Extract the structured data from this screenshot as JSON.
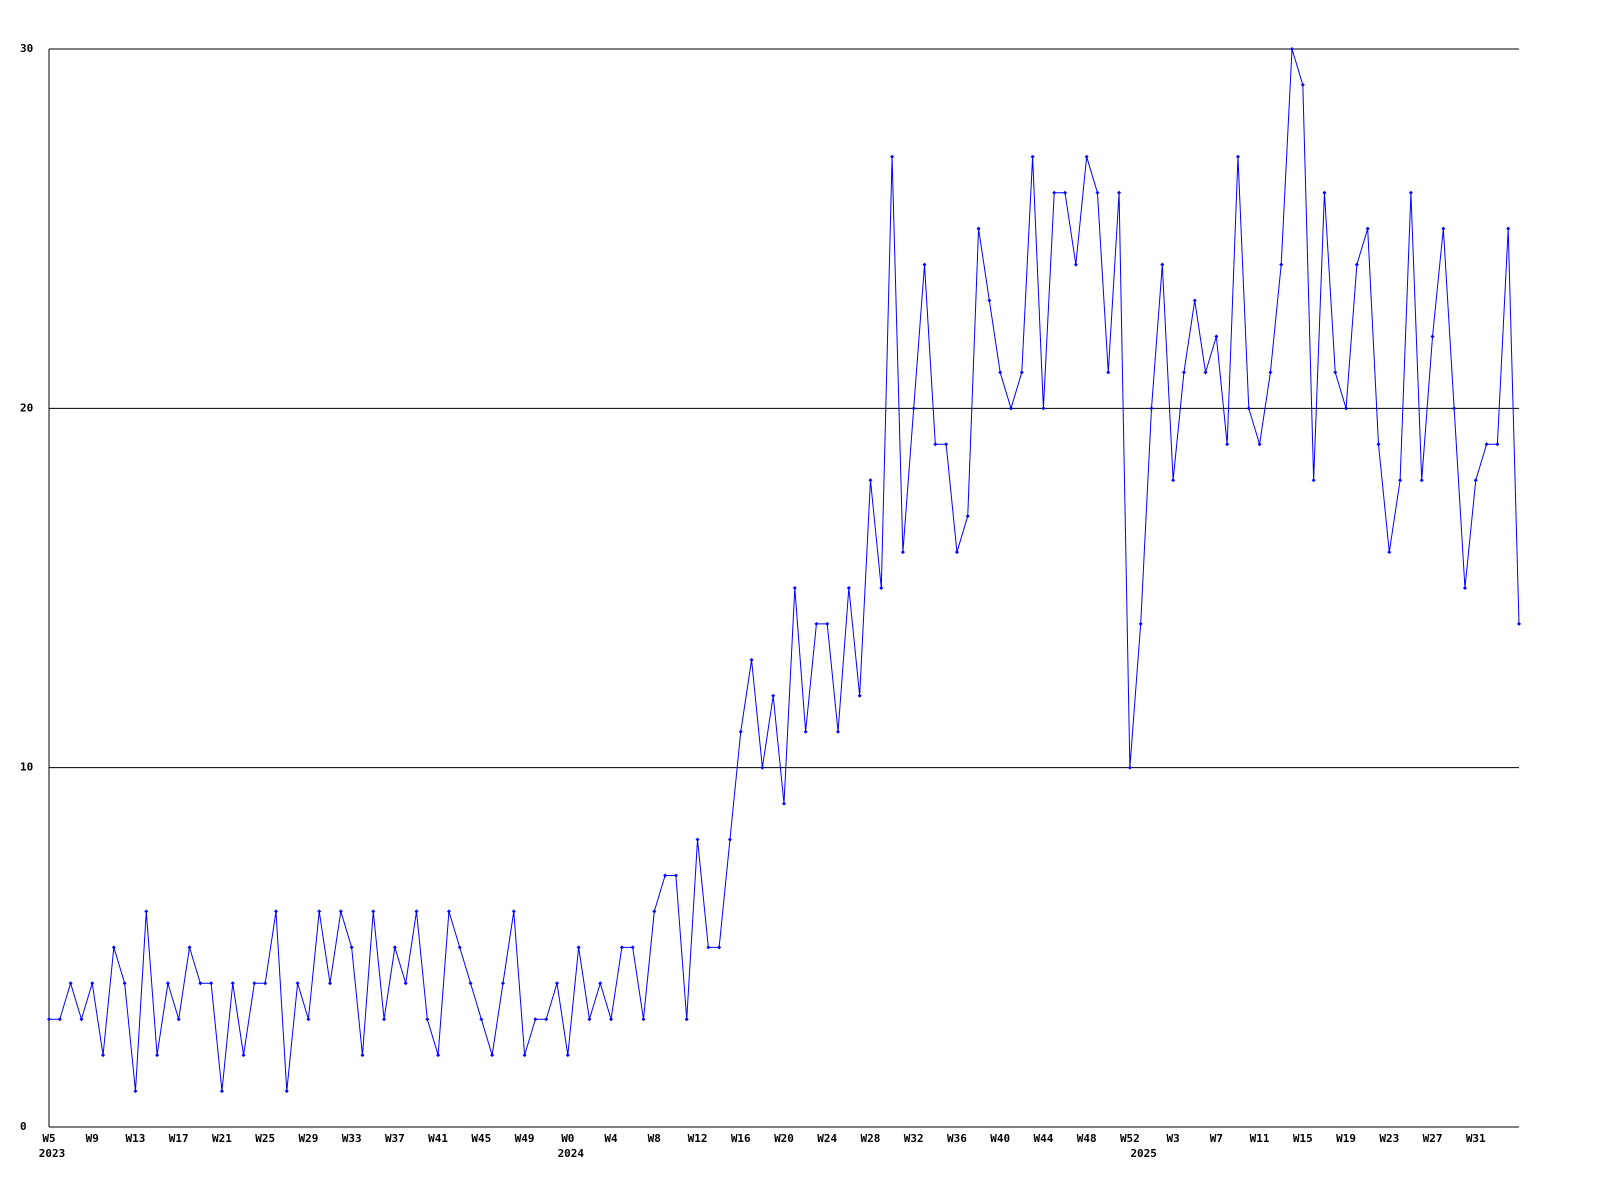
{
  "chart_data": {
    "type": "line",
    "categories": [
      "W5",
      null,
      null,
      null,
      "W9",
      null,
      null,
      null,
      "W13",
      null,
      null,
      null,
      "W17",
      null,
      null,
      null,
      "W21",
      null,
      null,
      null,
      "W25",
      null,
      null,
      null,
      "W29",
      null,
      null,
      null,
      "W33",
      null,
      null,
      null,
      "W37",
      null,
      null,
      null,
      "W41",
      null,
      null,
      null,
      "W45",
      null,
      null,
      null,
      "W49",
      null,
      null,
      null,
      "W0",
      null,
      null,
      null,
      "W4",
      null,
      null,
      null,
      "W8",
      null,
      null,
      null,
      "W12",
      null,
      null,
      null,
      "W16",
      null,
      null,
      null,
      "W20",
      null,
      null,
      null,
      "W24",
      null,
      null,
      null,
      "W28",
      null,
      null,
      null,
      "W32",
      null,
      null,
      null,
      "W36",
      null,
      null,
      null,
      "W40",
      null,
      null,
      null,
      "W44",
      null,
      null,
      null,
      "W48",
      null,
      null,
      null,
      "W52",
      null,
      null,
      null,
      "W3",
      null,
      null,
      null,
      "W7",
      null,
      null,
      null,
      "W11",
      null,
      null,
      null,
      "W15",
      null,
      null,
      null,
      "W19",
      null,
      null,
      null,
      "W23",
      null,
      null,
      null,
      "W27",
      null,
      null,
      null,
      "W31",
      null,
      null,
      null,
      null
    ],
    "years": [
      "2023",
      null,
      null,
      null,
      null,
      null,
      null,
      null,
      null,
      null,
      null,
      null,
      null,
      null,
      null,
      null,
      null,
      null,
      null,
      null,
      null,
      null,
      null,
      null,
      null,
      null,
      null,
      null,
      null,
      null,
      null,
      null,
      null,
      null,
      null,
      null,
      null,
      null,
      null,
      null,
      null,
      null,
      null,
      null,
      null,
      null,
      null,
      null,
      "2024",
      null,
      null,
      null,
      null,
      null,
      null,
      null,
      null,
      null,
      null,
      null,
      null,
      null,
      null,
      null,
      null,
      null,
      null,
      null,
      null,
      null,
      null,
      null,
      null,
      null,
      null,
      null,
      null,
      null,
      null,
      null,
      null,
      null,
      null,
      null,
      null,
      null,
      null,
      null,
      null,
      null,
      null,
      null,
      null,
      null,
      null,
      null,
      null,
      null,
      null,
      null,
      null,
      "2025",
      null,
      null,
      null,
      null,
      null,
      null,
      null,
      null,
      null,
      null,
      null,
      null,
      null,
      null,
      null,
      null,
      null,
      null,
      null,
      null,
      null,
      null,
      null,
      null,
      null,
      null,
      null,
      null,
      null,
      null,
      null,
      null,
      null,
      null,
      null
    ],
    "values": [
      3,
      3,
      4,
      3,
      4,
      2,
      5,
      4,
      1,
      6,
      2,
      4,
      3,
      5,
      4,
      4,
      1,
      4,
      2,
      4,
      4,
      6,
      1,
      4,
      3,
      6,
      4,
      6,
      5,
      2,
      6,
      3,
      5,
      4,
      6,
      3,
      2,
      6,
      5,
      4,
      3,
      2,
      4,
      6,
      2,
      3,
      3,
      4,
      2,
      5,
      3,
      4,
      3,
      5,
      5,
      3,
      6,
      7,
      7,
      3,
      8,
      5,
      5,
      8,
      11,
      13,
      10,
      12,
      9,
      15,
      11,
      14,
      14,
      11,
      15,
      12,
      18,
      15,
      27,
      16,
      20,
      24,
      19,
      19,
      16,
      17,
      25,
      23,
      21,
      20,
      21,
      27,
      20,
      26,
      26,
      24,
      27,
      26,
      21,
      26,
      10,
      14,
      20,
      24,
      18,
      21,
      23,
      21,
      22,
      19,
      27,
      20,
      19,
      21,
      24,
      30,
      29,
      18,
      26,
      21,
      20,
      24,
      25,
      19,
      16,
      18,
      26,
      18,
      22,
      25,
      20,
      15,
      18,
      19,
      19,
      25,
      14
    ],
    "color": "#0000ff",
    "ylim": [
      0,
      30
    ],
    "yticks": [
      0,
      10,
      20,
      30
    ],
    "grid": true
  }
}
